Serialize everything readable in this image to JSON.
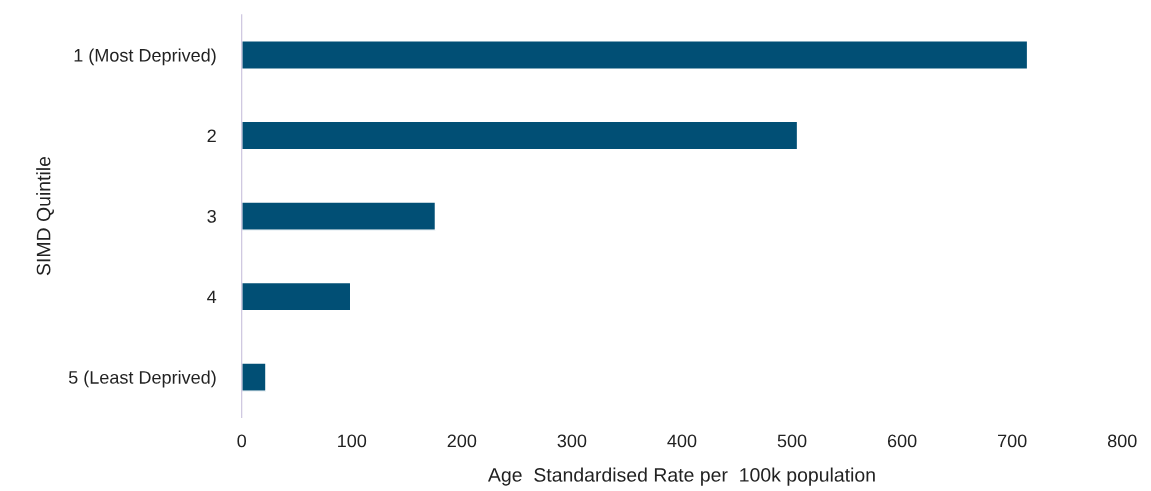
{
  "chart_data": {
    "type": "bar",
    "orientation": "horizontal",
    "xlabel": "Age  Standardised Rate per  100k population",
    "ylabel": "SIMD Quintile",
    "categories": [
      "1 (Most Deprived)",
      "2",
      "3",
      "4",
      "5 (Least Deprived)"
    ],
    "values": [
      714,
      505,
      176,
      99,
      22
    ],
    "color": "#014f75",
    "xlim": [
      0,
      800
    ],
    "xticks": [
      0,
      100,
      200,
      300,
      400,
      500,
      600,
      700,
      800
    ],
    "grid": false,
    "legend": false
  }
}
